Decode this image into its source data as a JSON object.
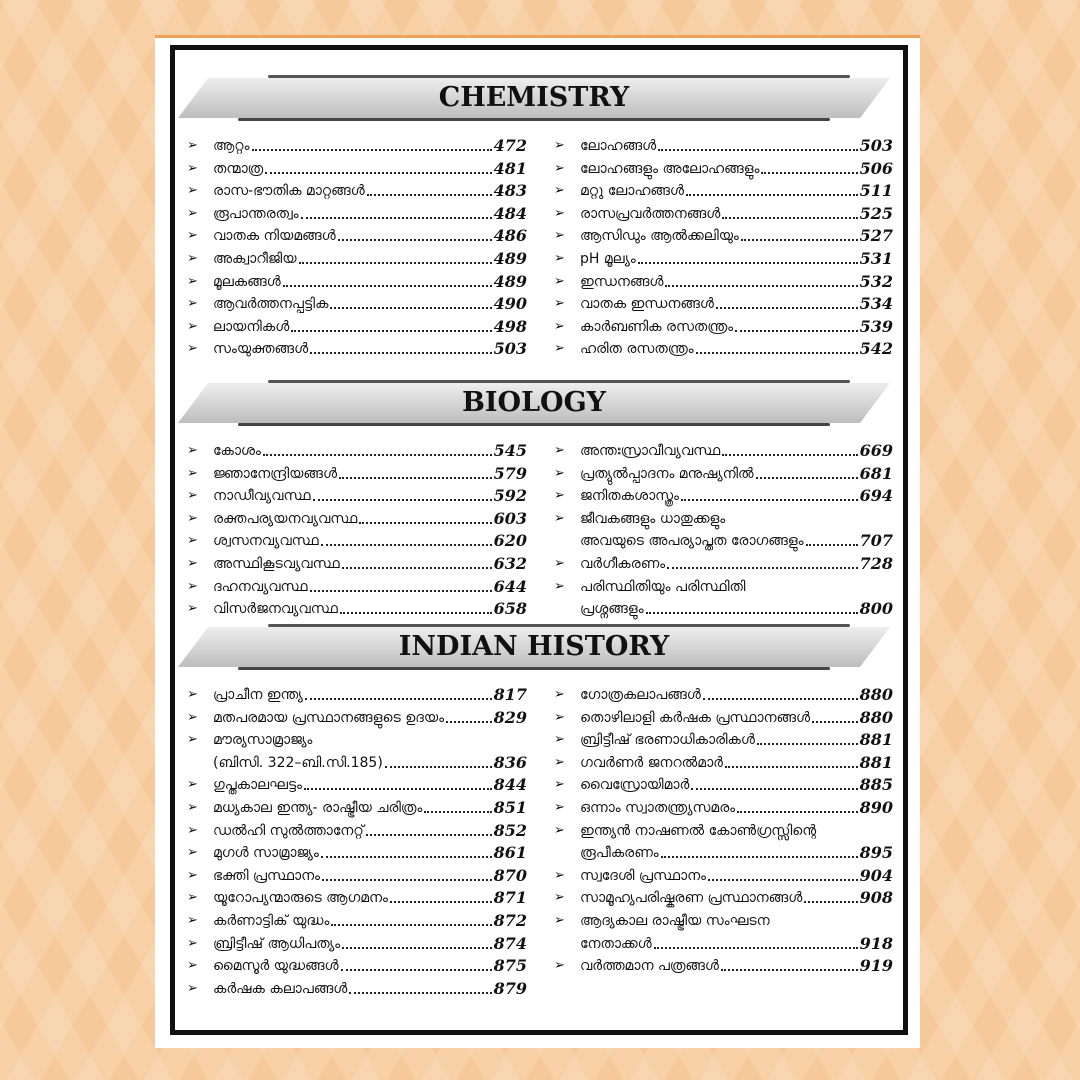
{
  "sections": [
    {
      "title": "CHEMISTRY",
      "left": [
        {
          "lines": [
            "ആറ്റം"
          ],
          "page": 472
        },
        {
          "lines": [
            "തന്മാത്ര"
          ],
          "page": 481
        },
        {
          "lines": [
            "രാസ-ഭൗതിക മാറ്റങ്ങൾ"
          ],
          "page": 483
        },
        {
          "lines": [
            "രൂപാന്തരത്വം"
          ],
          "page": 484
        },
        {
          "lines": [
            "വാതക നിയമങ്ങൾ"
          ],
          "page": 486
        },
        {
          "lines": [
            "അക്വാറീജിയ"
          ],
          "page": 489
        },
        {
          "lines": [
            "മൂലകങ്ങൾ"
          ],
          "page": 489
        },
        {
          "lines": [
            "ആവർത്തനപ്പട്ടിക"
          ],
          "page": 490
        },
        {
          "lines": [
            "ലായനികൾ"
          ],
          "page": 498
        },
        {
          "lines": [
            "സംയുക്തങ്ങൾ"
          ],
          "page": 503
        }
      ],
      "right": [
        {
          "lines": [
            "ലോഹങ്ങൾ"
          ],
          "page": 503
        },
        {
          "lines": [
            "ലോഹങ്ങളും അലോഹങ്ങളും"
          ],
          "page": 506
        },
        {
          "lines": [
            "മറ്റു ലോഹങ്ങൾ"
          ],
          "page": 511
        },
        {
          "lines": [
            "രാസപ്രവർത്തനങ്ങൾ"
          ],
          "page": 525
        },
        {
          "lines": [
            "ആസിഡും ആൽക്കലിയും"
          ],
          "page": 527
        },
        {
          "lines": [
            "pH മൂല്യം"
          ],
          "page": 531
        },
        {
          "lines": [
            "ഇന്ധനങ്ങൾ"
          ],
          "page": 532
        },
        {
          "lines": [
            "വാതക ഇന്ധനങ്ങൾ"
          ],
          "page": 534
        },
        {
          "lines": [
            "കാർബണിക രസതന്ത്രം"
          ],
          "page": 539
        },
        {
          "lines": [
            "ഹരിത രസതന്ത്രം"
          ],
          "page": 542
        }
      ]
    },
    {
      "title": "BIOLOGY",
      "left": [
        {
          "lines": [
            "കോശം"
          ],
          "page": 545
        },
        {
          "lines": [
            "ജ്ഞാനേന്ദ്രിയങ്ങൾ"
          ],
          "page": 579
        },
        {
          "lines": [
            "നാഡീവ്യവസ്ഥ"
          ],
          "page": 592
        },
        {
          "lines": [
            "രക്തപര്യയനവ്യവസ്ഥ"
          ],
          "page": 603
        },
        {
          "lines": [
            "ശ്വസനവ്യവസ്ഥ"
          ],
          "page": 620
        },
        {
          "lines": [
            "അസ്ഥികൂടവ്യവസ്ഥ"
          ],
          "page": 632
        },
        {
          "lines": [
            "ദഹനവ്യവസ്ഥ"
          ],
          "page": 644
        },
        {
          "lines": [
            "വിസർജനവ്യവസ്ഥ"
          ],
          "page": 658
        }
      ],
      "right": [
        {
          "lines": [
            "അന്തഃസ്രാവീവ്യവസ്ഥ"
          ],
          "page": 669
        },
        {
          "lines": [
            "പ്രത്യുൽപ്പാദനം മനുഷ്യനിൽ"
          ],
          "page": 681
        },
        {
          "lines": [
            "ജനിതകശാസ്ത്രം"
          ],
          "page": 694
        },
        {
          "lines": [
            "ജീവകങ്ങളും ധാതുക്കളും",
            "അവയുടെ അപര്യാപ്തത രോഗങ്ങളും"
          ],
          "page": 707
        },
        {
          "lines": [
            "വർഗീകരണം"
          ],
          "page": 728
        },
        {
          "lines": [
            "പരിസ്ഥിതിയും പരിസ്ഥിതി",
            "പ്രശ്നങ്ങളും"
          ],
          "page": 800
        }
      ]
    },
    {
      "title": "INDIAN HISTORY",
      "left": [
        {
          "lines": [
            "പ്രാചീന ഇന്ത്യ"
          ],
          "page": 817
        },
        {
          "lines": [
            "മതപരമായ പ്രസ്ഥാനങ്ങളുടെ ഉദയം"
          ],
          "page": 829
        },
        {
          "lines": [
            "മൗര്യസാമ്രാജ്യം",
            "(ബിസി. 322–ബി.സി.185)"
          ],
          "page": 836
        },
        {
          "lines": [
            "ഗുപ്തകാലഘട്ടം"
          ],
          "page": 844
        },
        {
          "lines": [
            "മധ്യകാല ഇന്ത്യ- രാഷ്ട്രീയ ചരിത്രം"
          ],
          "page": 851
        },
        {
          "lines": [
            "ഡൽഹി സുൽത്താനേറ്റ്"
          ],
          "page": 852
        },
        {
          "lines": [
            "മുഗൾ സാമ്രാജ്യം"
          ],
          "page": 861
        },
        {
          "lines": [
            "ഭക്തി പ്രസ്ഥാനം"
          ],
          "page": 870
        },
        {
          "lines": [
            "യൂറോപ്യന്മാരുടെ ആഗമനം"
          ],
          "page": 871
        },
        {
          "lines": [
            "കർണാട്ടിക് യുദ്ധം"
          ],
          "page": 872
        },
        {
          "lines": [
            "ബ്രിട്ടീഷ് ആധിപത്യം"
          ],
          "page": 874
        },
        {
          "lines": [
            "മൈസൂർ യുദ്ധങ്ങൾ"
          ],
          "page": 875
        },
        {
          "lines": [
            "കർഷക കലാപങ്ങൾ"
          ],
          "page": 879
        }
      ],
      "right": [
        {
          "lines": [
            "ഗോത്രകലാപങ്ങൾ"
          ],
          "page": 880
        },
        {
          "lines": [
            "തൊഴിലാളി കർഷക പ്രസ്ഥാനങ്ങൾ"
          ],
          "page": 880
        },
        {
          "lines": [
            "ബ്രിട്ടീഷ് ഭരണാധികാരികൾ"
          ],
          "page": 881
        },
        {
          "lines": [
            "ഗവർണർ ജനറൽമാർ"
          ],
          "page": 881
        },
        {
          "lines": [
            "വൈസ്രോയിമാർ"
          ],
          "page": 885
        },
        {
          "lines": [
            "ഒന്നാം സ്വാതന്ത്ര്യസമരം"
          ],
          "page": 890
        },
        {
          "lines": [
            "ഇന്ത്യൻ നാഷണൽ കോൺഗ്രസ്സിന്റെ",
            "രൂപീകരണം"
          ],
          "page": 895
        },
        {
          "lines": [
            "സ്വദേശി പ്രസ്ഥാനം"
          ],
          "page": 904
        },
        {
          "lines": [
            "സാമൂഹ്യപരിഷ്കരണ പ്രസ്ഥാനങ്ങൾ"
          ],
          "page": 908
        },
        {
          "lines": [
            "ആദ്യകാല രാഷ്ട്രീയ സംഘടന",
            "നേതാക്കൾ"
          ],
          "page": 918
        },
        {
          "lines": [
            "വർത്തമാന പത്രങ്ങൾ"
          ],
          "page": 919
        }
      ]
    }
  ]
}
